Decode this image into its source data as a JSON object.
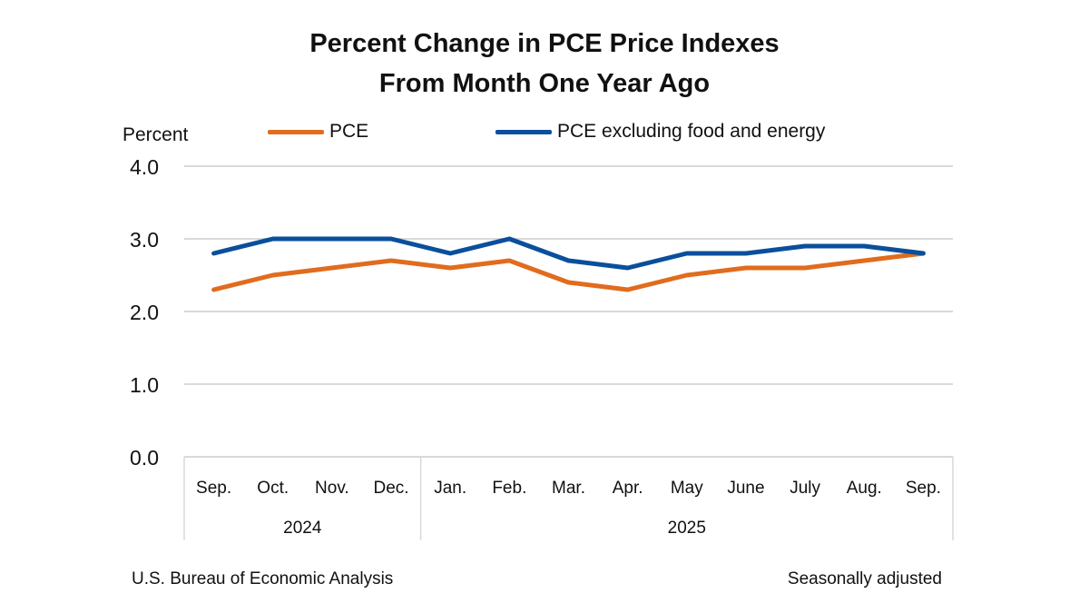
{
  "chart_data": {
    "type": "line",
    "title": [
      "Percent Change in PCE Price Indexes",
      "From Month One Year Ago"
    ],
    "ylabel": "Percent",
    "xlabel": "",
    "ylim": [
      0,
      4
    ],
    "yticks": [
      "0.0",
      "1.0",
      "2.0",
      "3.0",
      "4.0"
    ],
    "grid": true,
    "legend_position": "top",
    "categories": [
      "Sep.",
      "Oct.",
      "Nov.",
      "Dec.",
      "Jan.",
      "Feb.",
      "Mar.",
      "Apr.",
      "May",
      "June",
      "July",
      "Aug.",
      "Sep."
    ],
    "year_groups": [
      {
        "label": "2024",
        "count": 4
      },
      {
        "label": "2025",
        "count": 9
      }
    ],
    "series": [
      {
        "name": "PCE",
        "color": "#E06C1E",
        "values": [
          2.3,
          2.5,
          2.6,
          2.7,
          2.6,
          2.7,
          2.4,
          2.3,
          2.5,
          2.6,
          2.6,
          2.7,
          2.8
        ]
      },
      {
        "name": "PCE excluding food and energy",
        "color": "#0A4F9C",
        "values": [
          2.8,
          3.0,
          3.0,
          3.0,
          2.8,
          3.0,
          2.7,
          2.6,
          2.8,
          2.8,
          2.9,
          2.9,
          2.8
        ]
      }
    ],
    "source": "U.S. Bureau of Economic Analysis",
    "note": "Seasonally adjusted"
  }
}
